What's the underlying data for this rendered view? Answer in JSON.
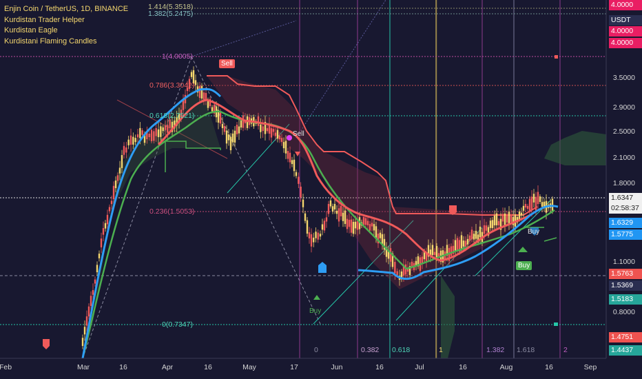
{
  "legend": {
    "symbol": "Enjin Coin / TetherUS, 1D, BINANCE",
    "indicator1": "Kurdistan Trader Helper",
    "indicator2": "Kurdistan Eagle",
    "indicator3": "Kurdistani Flaming Candles"
  },
  "price_axis": {
    "currency": "USDT",
    "labels": [
      "3.5000",
      "2.9000",
      "2.5000",
      "2.1000",
      "1.8000",
      "1.1000",
      "0.8000"
    ],
    "tags": [
      {
        "text": "4.0000",
        "color": "#e91e63"
      },
      {
        "text": "4.0000",
        "color": "#e91e63"
      },
      {
        "text": "4.0000",
        "color": "#e91e63"
      },
      {
        "text": "1.6347",
        "color": "#f0f0f0",
        "text_color": "#222222"
      },
      {
        "text": "02:58:37",
        "color": "#f0f0f0",
        "text_color": "#222222"
      },
      {
        "text": "1.6329",
        "color": "#2196f3"
      },
      {
        "text": "1.5775",
        "color": "#2196f3"
      },
      {
        "text": "1.5763",
        "color": "#ef5350"
      },
      {
        "text": "1.5369",
        "color": "#2a2e50"
      },
      {
        "text": "1.5183",
        "color": "#26a69a"
      },
      {
        "text": "1.4751",
        "color": "#ef5350"
      },
      {
        "text": "1.4437",
        "color": "#26a69a"
      }
    ]
  },
  "time_axis": [
    "Feb",
    "Mar",
    "16",
    "Apr",
    "16",
    "May",
    "17",
    "Jun",
    "16",
    "Jul",
    "16",
    "Aug",
    "16",
    "Sep"
  ],
  "fib_levels": {
    "top_a": "1.414(5.3518)",
    "top_b": "1.382(5.2475)",
    "l1": "1(4.0005)",
    "l786": "0.786(3.3042)",
    "l618": "0.618(2.7521)",
    "l236": "0.236(1.5053)",
    "l0": "0(0.7347)"
  },
  "fib_time": [
    "0",
    "0.382",
    "0.618",
    "1",
    "1.382",
    "1.618",
    "2"
  ],
  "signals": {
    "sell1": "Sell",
    "sell2": "Sell",
    "buy1": "Buy",
    "buy2": "Buy",
    "buy3": "Buy"
  },
  "colors": {
    "background": "#181830",
    "ma_blue": "#2e9df4",
    "ma_red": "#f05a5a",
    "ma_green": "#4caf50",
    "candle_up": "#f5d76e",
    "candle_down": "#f05a5a"
  }
}
